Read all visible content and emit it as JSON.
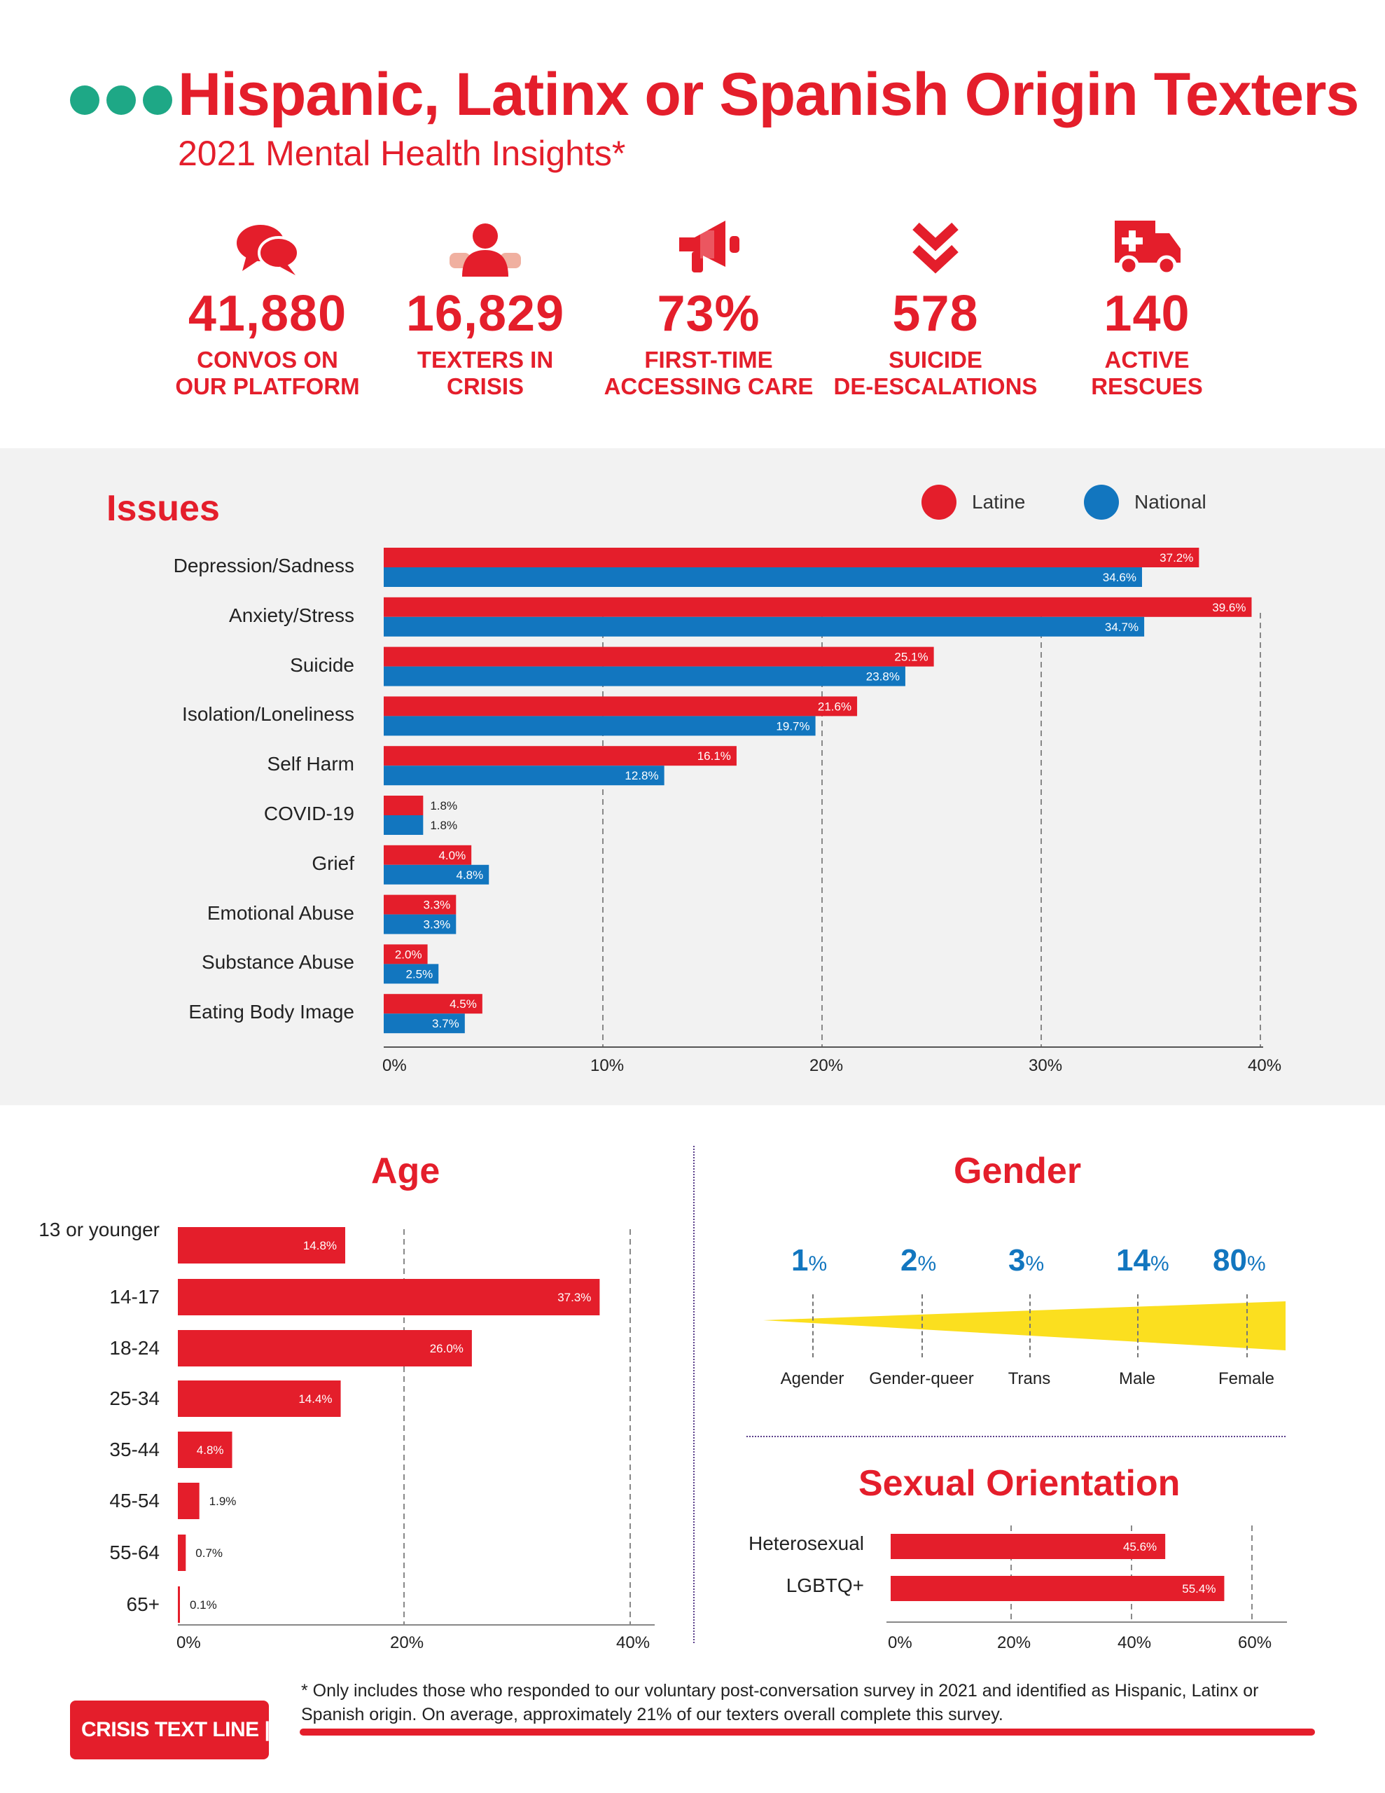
{
  "header": {
    "title": "Hispanic, Latinx or Spanish Origin Texters",
    "subtitle": "2021 Mental Health Insights*"
  },
  "stats": [
    {
      "icon": "chat-bubbles-icon",
      "value": "41,880",
      "label": "CONVOS ON\nOUR PLATFORM"
    },
    {
      "icon": "person-icon",
      "value": "16,829",
      "label": "TEXTERS IN\nCRISIS"
    },
    {
      "icon": "megaphone-icon",
      "value": "73%",
      "label": "FIRST-TIME\nACCESSING CARE"
    },
    {
      "icon": "double-chevron-down-icon",
      "value": "578",
      "label": "SUICIDE\nDE-ESCALATIONS"
    },
    {
      "icon": "ambulance-icon",
      "value": "140",
      "label": "ACTIVE\nRESCUES"
    }
  ],
  "colors": {
    "red": "#e41e2b",
    "blue": "#1276bf",
    "teal": "#1ea886",
    "yellow": "#fbdf1f",
    "panel": "#f2f2f2"
  },
  "chart_data": [
    {
      "type": "bar",
      "orientation": "horizontal",
      "title": "Issues",
      "categories": [
        "Depression/Sadness",
        "Anxiety/Stress",
        "Suicide",
        "Isolation/Loneliness",
        "Self Harm",
        "COVID-19",
        "Grief",
        "Emotional Abuse",
        "Substance Abuse",
        "Eating Body Image"
      ],
      "series": [
        {
          "name": "Latine",
          "values": [
            37.2,
            39.6,
            25.1,
            21.6,
            16.1,
            1.8,
            4.0,
            3.3,
            2.0,
            4.5
          ]
        },
        {
          "name": "National",
          "values": [
            34.6,
            34.7,
            23.8,
            19.7,
            12.8,
            1.8,
            4.8,
            3.3,
            2.5,
            3.7
          ]
        }
      ],
      "value_labels": {
        "Latine": [
          "37.2%",
          "39.6%",
          "25.1%",
          "21.6%",
          "16.1%",
          "1.8%",
          "4.0%",
          "3.3%",
          "2.0%",
          "4.5%"
        ],
        "National": [
          "34.6%",
          "34.7%",
          "23.8%",
          "19.7%",
          "12.8%",
          "1.8%",
          "4.8%",
          "3.3%",
          "2.5%",
          "3.7%"
        ]
      },
      "xticks": [
        "0%",
        "10%",
        "20%",
        "30%",
        "40%"
      ],
      "xlim": [
        0,
        40
      ],
      "legend": "top-right",
      "grid": "vertical dashed"
    },
    {
      "type": "bar",
      "orientation": "horizontal",
      "title": "Age",
      "categories": [
        "13 or younger",
        "14-17",
        "18-24",
        "25-34",
        "35-44",
        "45-54",
        "55-64",
        "65+"
      ],
      "values": [
        14.8,
        37.3,
        26.0,
        14.4,
        4.8,
        1.9,
        0.7,
        0.1
      ],
      "value_labels": [
        "14.8%",
        "37.3%",
        "26.0%",
        "14.4%",
        "4.8%",
        "1.9%",
        "0.7%",
        "0.1%"
      ],
      "xticks": [
        "0%",
        "20%",
        "40%"
      ],
      "xlim": [
        0,
        42
      ],
      "grid": "vertical dashed"
    },
    {
      "type": "bar",
      "title": "Gender",
      "categories": [
        "Agender",
        "Gender-queer",
        "Trans",
        "Male",
        "Female"
      ],
      "values": [
        1,
        2,
        3,
        14,
        80
      ],
      "value_labels": [
        "1",
        "2",
        "3",
        "14",
        "80"
      ],
      "unit": "%"
    },
    {
      "type": "bar",
      "orientation": "horizontal",
      "title": "Sexual Orientation",
      "categories": [
        "Heterosexual",
        "LGBTQ+"
      ],
      "values": [
        45.6,
        55.4
      ],
      "value_labels": [
        "45.6%",
        "55.4%"
      ],
      "xticks": [
        "0%",
        "20%",
        "40%",
        "60%"
      ],
      "xlim": [
        0,
        62
      ],
      "grid": "vertical dashed"
    }
  ],
  "footer": {
    "footnote": "* Only includes those who responded to our voluntary post-conversation survey in 2021 and identified as Hispanic, Latinx or Spanish origin. On average, approximately 21% of our texters overall complete this survey.",
    "logo_text": "CRISIS TEXT LINE |"
  }
}
